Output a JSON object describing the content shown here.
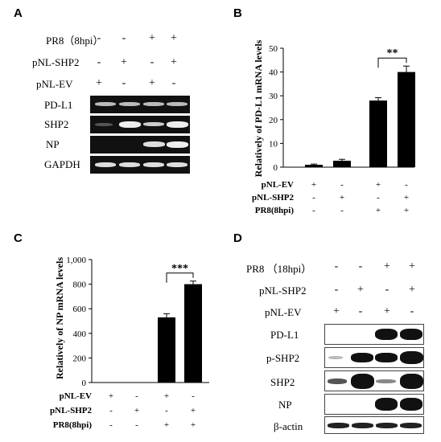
{
  "panelA": {
    "letter": "A",
    "condition_labels": [
      "PR8（8hpi）",
      "pNL-SHP2",
      "pNL-EV"
    ],
    "condition_rows": [
      [
        "-",
        "-",
        "+",
        "+"
      ],
      [
        "-",
        "+",
        "-",
        "+"
      ],
      [
        "+",
        "-",
        "+",
        "-"
      ]
    ],
    "bands": [
      "PD-L1",
      "SHP2",
      "NP",
      "GAPDH"
    ]
  },
  "panelD": {
    "letter": "D",
    "condition_labels": [
      "PR8 （18hpi）",
      "pNL-SHP2",
      "pNL-EV"
    ],
    "condition_rows": [
      [
        "-",
        "-",
        "+",
        "+"
      ],
      [
        "-",
        "+",
        "-",
        "+"
      ],
      [
        "+",
        "-",
        "+",
        "-"
      ]
    ],
    "bands": [
      "PD-L1",
      "p-SHP2",
      "SHP2",
      "NP",
      "β-actin"
    ]
  },
  "chart_data": [
    {
      "panel": "B",
      "type": "bar",
      "ylabel": "Relatively of PD-L1 mRNA levels",
      "ylim": [
        0,
        50
      ],
      "yticks": [
        "0",
        "10",
        "20",
        "30",
        "40",
        "50"
      ],
      "values": [
        1,
        2.7,
        28,
        40
      ],
      "errors": [
        0.3,
        0.6,
        1.2,
        2.5
      ],
      "significance": "**",
      "condition_labels": [
        "pNL-EV",
        "pNL-SHP2",
        "PR8(8hpi)"
      ],
      "condition_rows": [
        [
          "+",
          "-",
          "+",
          "-"
        ],
        [
          "-",
          "+",
          "-",
          "+"
        ],
        [
          "-",
          "-",
          "+",
          "+"
        ]
      ]
    },
    {
      "panel": "C",
      "type": "bar",
      "ylabel": "Relatively of NP mRNA levels",
      "ylim": [
        0,
        1000
      ],
      "yticks": [
        "0",
        "200",
        "400",
        "600",
        "800",
        "1,000"
      ],
      "values": [
        0,
        0,
        530,
        800
      ],
      "errors": [
        0,
        0,
        30,
        25
      ],
      "significance": "***",
      "condition_labels": [
        "pNL-EV",
        "pNL-SHP2",
        "PR8(8hpi)"
      ],
      "condition_rows": [
        [
          "+",
          "-",
          "+",
          "-"
        ],
        [
          "-",
          "+",
          "-",
          "+"
        ],
        [
          "-",
          "-",
          "+",
          "+"
        ]
      ]
    }
  ]
}
